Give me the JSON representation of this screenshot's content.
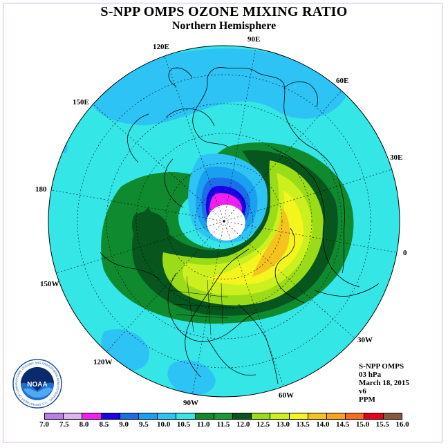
{
  "title": "S-NPP OMPS OZONE MIXING RATIO",
  "subtitle": "Northern Hemisphere",
  "longitude_labels": [
    "90E",
    "60E",
    "30E",
    "0",
    "30W",
    "60W",
    "90W",
    "120W",
    "150W",
    "180",
    "150E",
    "120E"
  ],
  "info": {
    "instrument": "S-NPP OMPS",
    "pressure_level": "03 hPa",
    "date": "March 18, 2015",
    "version": "v6",
    "units": "PPM"
  },
  "logo": {
    "text": "NOAA",
    "ring_text": "NATIONAL OCEANIC AND ATMOSPHERIC ADMINISTRATION · U.S. DEPARTMENT OF COMMERCE"
  },
  "colorbar": {
    "colors": [
      "#b97ee8",
      "#dcb5ee",
      "#f21ff2",
      "#1a00e6",
      "#1c6ee8",
      "#1aa0f0",
      "#2ec3f5",
      "#34e6e6",
      "#0f8a2f",
      "#18993a",
      "#06561d",
      "#9adc18",
      "#ccf01e",
      "#f5f51e",
      "#f5c31e",
      "#f5a51e",
      "#f56e1e",
      "#e6001e",
      "#8a5a40"
    ],
    "ticks": [
      "7.0",
      "7.5",
      "8.0",
      "8.5",
      "9.0",
      "9.5",
      "10.0",
      "10.5",
      "11.0",
      "11.5",
      "12.0",
      "12.5",
      "13.0",
      "13.5",
      "14.0",
      "14.5",
      "15.0",
      "15.5",
      "16.0"
    ]
  }
}
